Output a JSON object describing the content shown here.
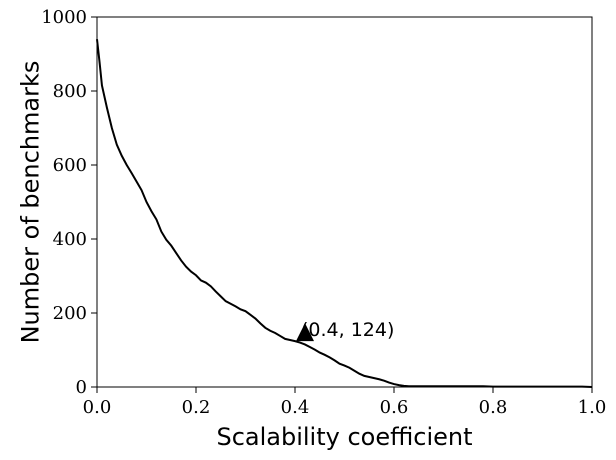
{
  "chart_data": {
    "type": "line",
    "xlabel": "Scalability coefficient",
    "ylabel": "Number of benchmarks",
    "xlim": [
      0.0,
      1.0
    ],
    "ylim": [
      0,
      1000
    ],
    "xticks": [
      0.0,
      0.2,
      0.4,
      0.6,
      0.8,
      1.0
    ],
    "xtick_labels": [
      "0.0",
      "0.2",
      "0.4",
      "0.6",
      "0.8",
      "1.0"
    ],
    "yticks": [
      0,
      200,
      400,
      600,
      800,
      1000
    ],
    "ytick_labels": [
      "0",
      "200",
      "400",
      "600",
      "800",
      "1000"
    ],
    "grid": false,
    "line_color": "#000000",
    "series": [
      {
        "x": [
          0.0,
          0.005,
          0.01,
          0.02,
          0.03,
          0.04,
          0.05,
          0.06,
          0.07,
          0.08,
          0.09,
          0.1,
          0.11,
          0.12,
          0.13,
          0.14,
          0.15,
          0.16,
          0.17,
          0.18,
          0.19,
          0.2,
          0.21,
          0.22,
          0.23,
          0.24,
          0.25,
          0.26,
          0.27,
          0.28,
          0.29,
          0.3,
          0.31,
          0.32,
          0.33,
          0.34,
          0.35,
          0.36,
          0.37,
          0.38,
          0.39,
          0.4,
          0.41,
          0.42,
          0.43,
          0.44,
          0.45,
          0.46,
          0.47,
          0.48,
          0.49,
          0.5,
          0.51,
          0.52,
          0.53,
          0.54,
          0.55,
          0.56,
          0.57,
          0.58,
          0.59,
          0.6,
          0.61,
          0.62,
          0.63,
          0.65,
          0.7,
          0.75,
          0.78,
          0.8,
          0.85,
          0.9,
          0.95,
          0.98,
          1.0
        ],
        "y": [
          940,
          880,
          815,
          755,
          700,
          655,
          625,
          600,
          578,
          555,
          532,
          500,
          475,
          453,
          420,
          398,
          382,
          362,
          342,
          325,
          312,
          302,
          288,
          282,
          272,
          258,
          245,
          232,
          225,
          218,
          210,
          205,
          195,
          185,
          172,
          160,
          152,
          146,
          138,
          130,
          127,
          124,
          120,
          115,
          108,
          101,
          93,
          87,
          80,
          72,
          63,
          58,
          52,
          44,
          36,
          30,
          27,
          24,
          21,
          17,
          12,
          8,
          5,
          3,
          2,
          2,
          2,
          2,
          2,
          1,
          1,
          1,
          1,
          1,
          0
        ]
      }
    ],
    "annotations": [
      {
        "x": 0.4,
        "y": 124,
        "label": "(0.4, 124)",
        "marker": "triangle"
      }
    ]
  }
}
